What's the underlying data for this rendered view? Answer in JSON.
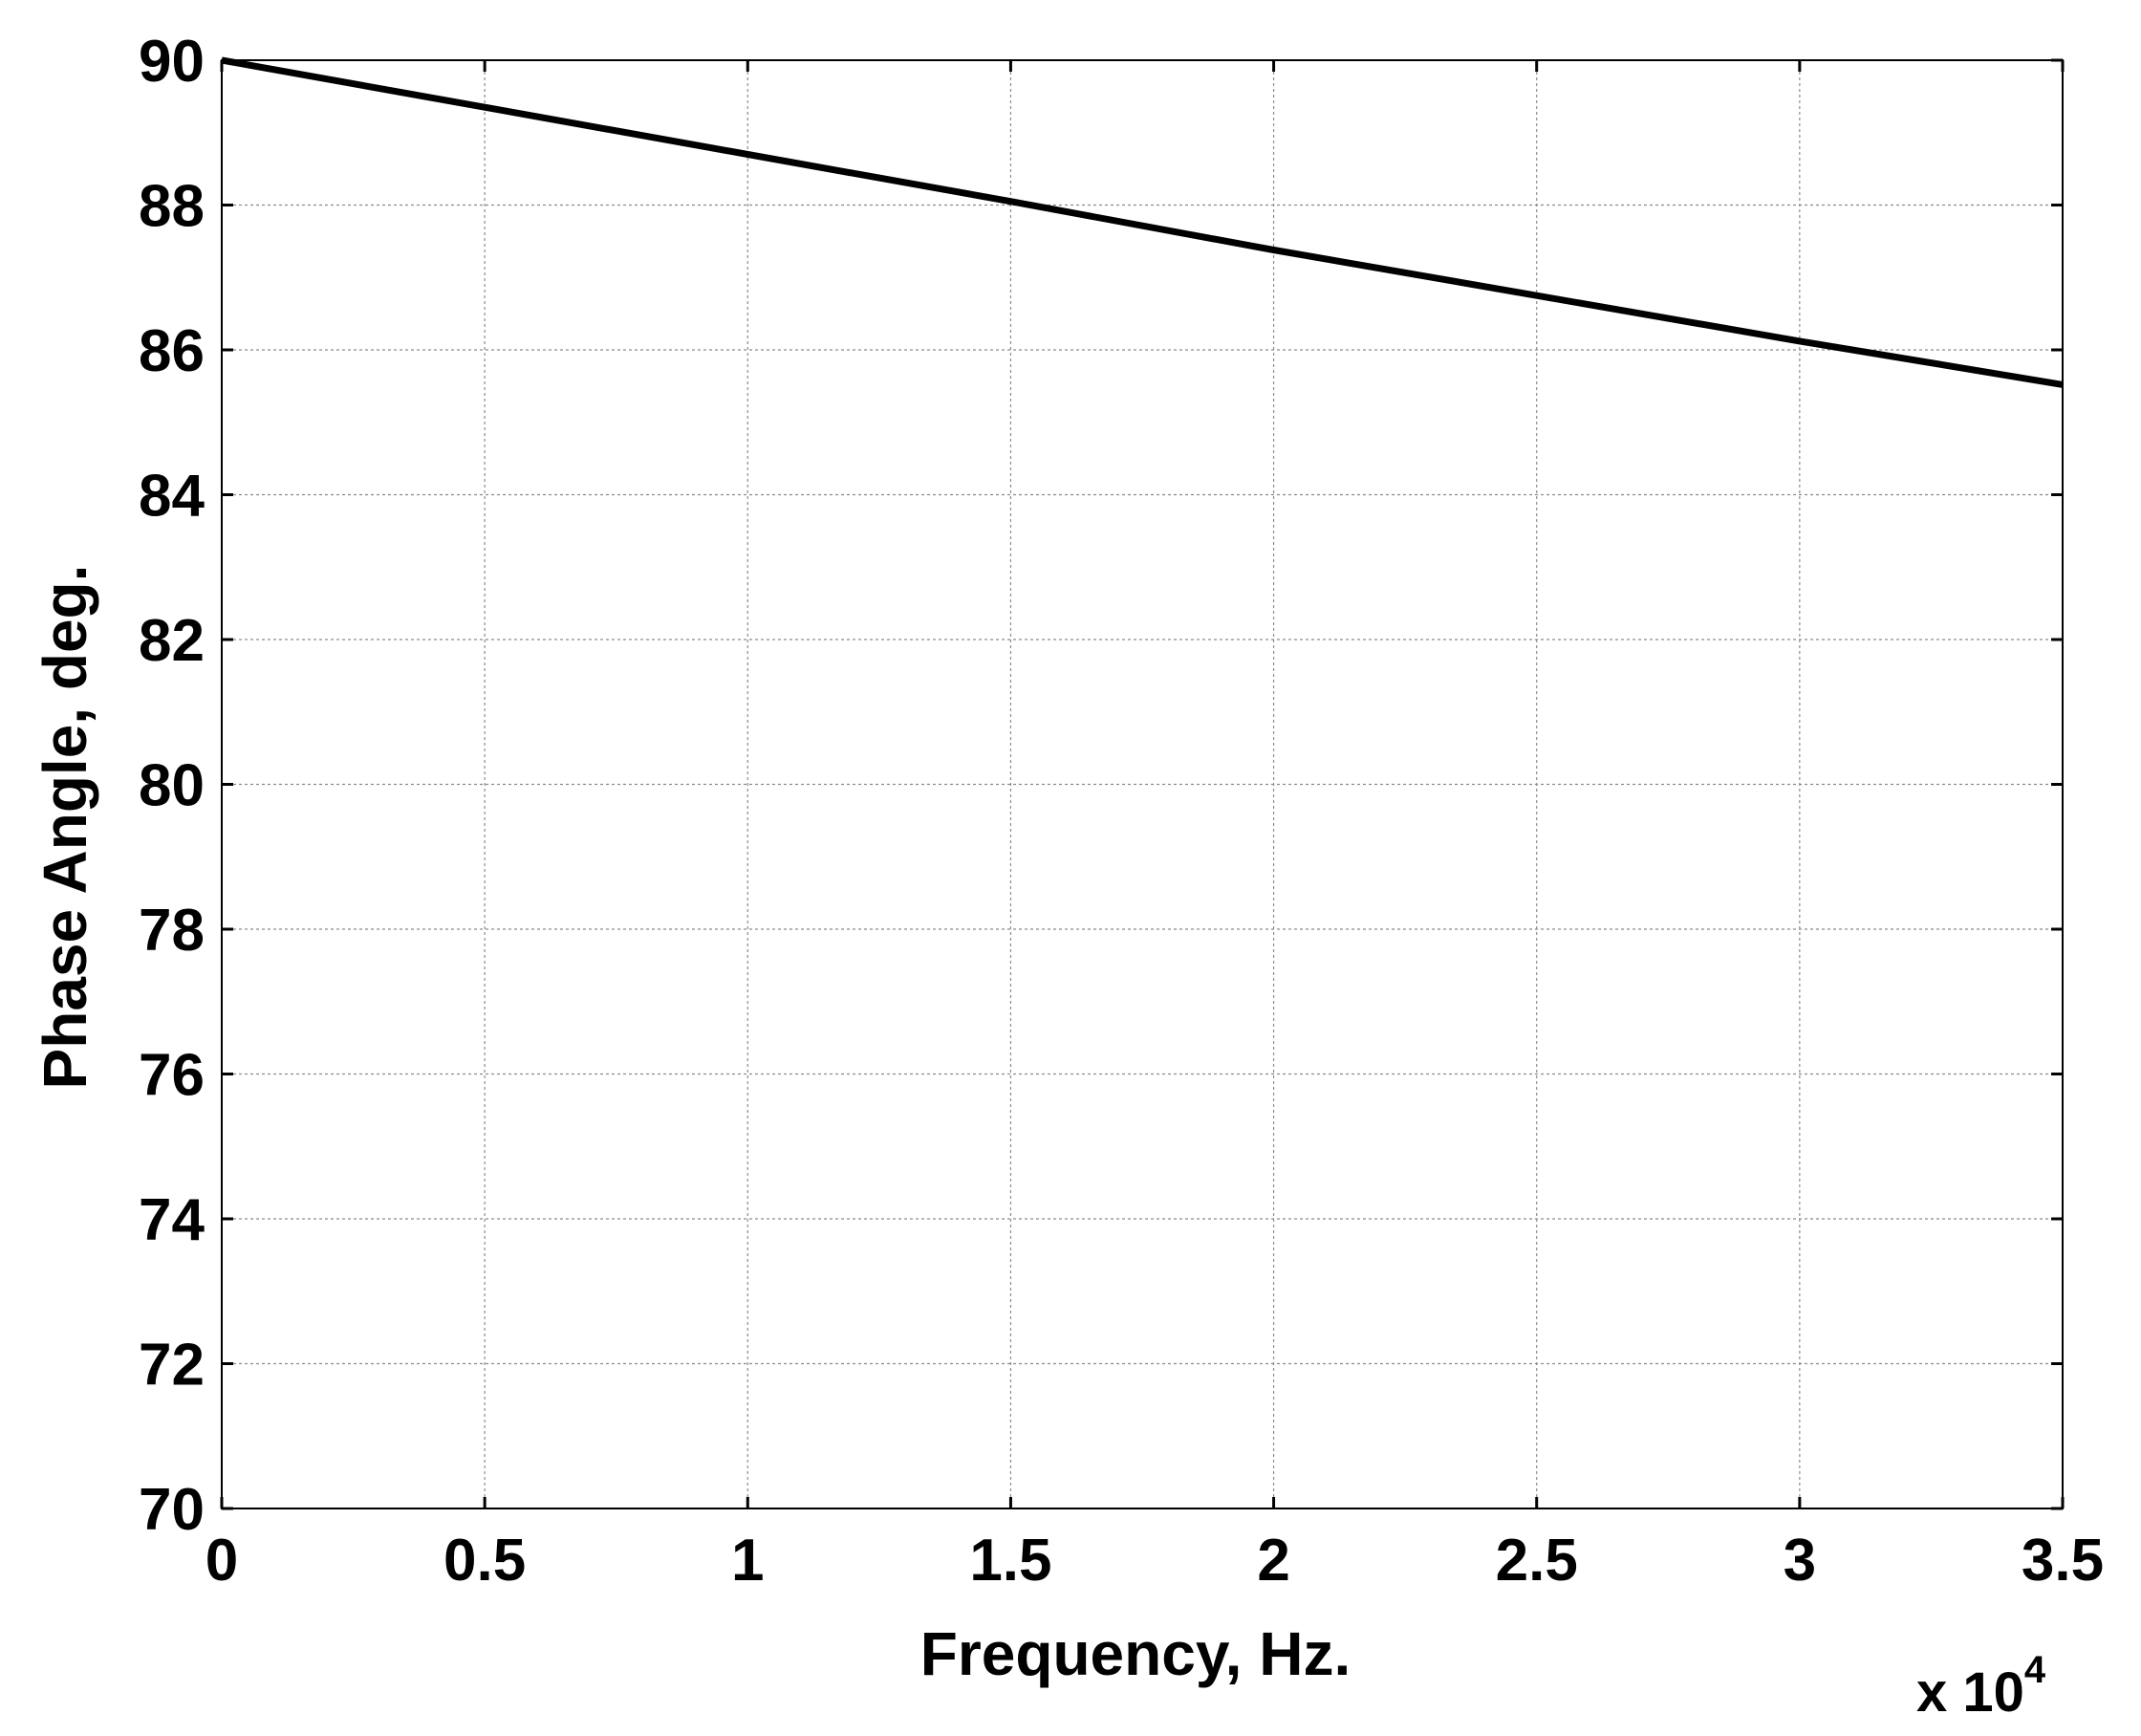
{
  "chart_data": {
    "type": "line",
    "xlabel": "Frequency, Hz.",
    "ylabel": "Phase Angle, deg.",
    "x_multiplier": "x 10",
    "x_multiplier_exponent": "4",
    "xlim": [
      0,
      3.5
    ],
    "ylim": [
      70,
      90
    ],
    "x_ticks": [
      "0",
      "0.5",
      "1",
      "1.5",
      "2",
      "2.5",
      "3",
      "3.5"
    ],
    "y_ticks": [
      "70",
      "72",
      "74",
      "76",
      "78",
      "80",
      "82",
      "84",
      "86",
      "88",
      "90"
    ],
    "grid": true,
    "line_color": "#000000",
    "series": [
      {
        "x": [
          0,
          0.5,
          1,
          1.5,
          2,
          2.5,
          3,
          3.5
        ],
        "y": [
          90,
          89.35,
          88.7,
          88.05,
          87.38,
          86.75,
          86.12,
          85.52
        ]
      }
    ]
  }
}
